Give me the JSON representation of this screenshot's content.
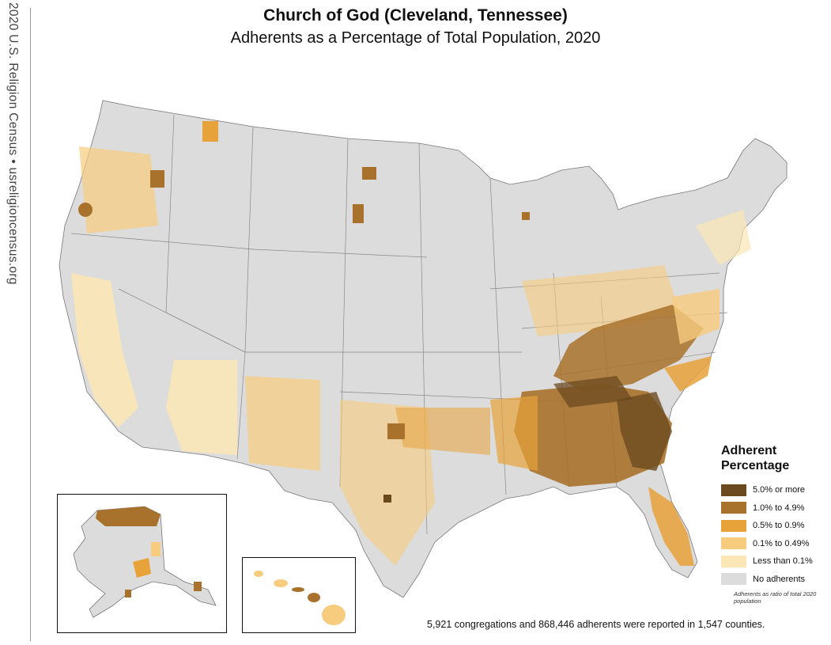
{
  "side_label": "2020 U.S. Religion Census • usreligioncensus.org",
  "title": "Church of God (Cleveland, Tennessee)",
  "subtitle": "Adherents as a Percentage of Total Population, 2020",
  "legend": {
    "title": "Adherent Percentage",
    "items": [
      {
        "label": "5.0% or more",
        "color": "#6b4a1f"
      },
      {
        "label": "1.0% to 4.9%",
        "color": "#a8722c"
      },
      {
        "label": "0.5% to 0.9%",
        "color": "#e7a23a"
      },
      {
        "label": "0.1% to 0.49%",
        "color": "#f8cc7e"
      },
      {
        "label": "Less than 0.1%",
        "color": "#fbe6b5"
      },
      {
        "label": "No adherents",
        "color": "#dcdcdc"
      }
    ],
    "note": "Adherents as ratio of total 2020 population"
  },
  "footnote": "5,921 congregations and 868,446 adherents were reported in 1,547 counties."
}
